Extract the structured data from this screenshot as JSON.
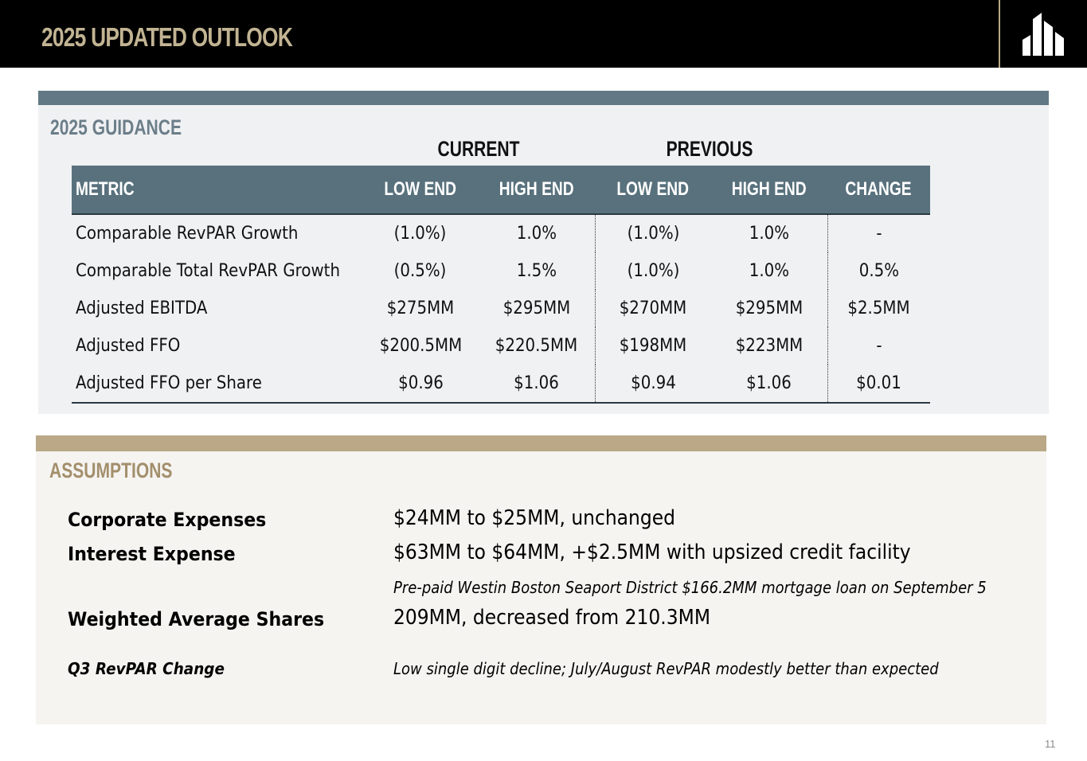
{
  "header": {
    "title": "2025 UPDATED OUTLOOK",
    "logo_icon": "building-columns-logo",
    "title_color": "#c2b493",
    "accent_color": "#b9a784"
  },
  "guidance": {
    "title": "2025 GUIDANCE",
    "current_label": "CURRENT",
    "previous_label": "PREVIOUS",
    "header_color": "#58717d",
    "columns": [
      "METRIC",
      "LOW END",
      "HIGH END",
      "LOW END",
      "HIGH END",
      "CHANGE"
    ],
    "rows": [
      [
        "Comparable RevPAR Growth",
        "(1.0%)",
        "1.0%",
        "(1.0%)",
        "1.0%",
        "-"
      ],
      [
        "Comparable Total RevPAR Growth",
        "(0.5%)",
        "1.5%",
        "(1.0%)",
        "1.0%",
        "0.5%"
      ],
      [
        "Adjusted EBITDA",
        "$275MM",
        "$295MM",
        "$270MM",
        "$295MM",
        "$2.5MM"
      ],
      [
        "Adjusted FFO",
        "$200.5MM",
        "$220.5MM",
        "$198MM",
        "$223MM",
        "-"
      ],
      [
        "Adjusted FFO per Share",
        "$0.96",
        "$1.06",
        "$0.94",
        "$1.06",
        "$0.01"
      ]
    ]
  },
  "assumptions": {
    "title": "ASSUMPTIONS",
    "accent_color": "#baa887",
    "corporate_expenses": {
      "label": "Corporate Expenses",
      "value": "$24MM to $25MM, unchanged"
    },
    "interest_expense": {
      "label": "Interest Expense",
      "value": "$63MM to $64MM, +$2.5MM with upsized credit facility",
      "note": "Pre-paid Westin Boston Seaport District $166.2MM mortgage loan on September 5"
    },
    "weighted_average_shares": {
      "label": "Weighted Average Shares",
      "value": "209MM, decreased from 210.3MM"
    },
    "q3_revpar": {
      "label": "Q3 RevPAR Change",
      "value": "Low single digit decline; July/August RevPAR modestly better than expected"
    }
  },
  "footer": {
    "page_number": "11"
  }
}
